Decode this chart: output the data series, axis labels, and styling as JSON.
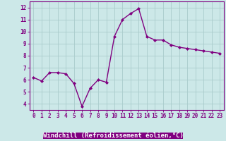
{
  "x": [
    0,
    1,
    2,
    3,
    4,
    5,
    6,
    7,
    8,
    9,
    10,
    11,
    12,
    13,
    14,
    15,
    16,
    17,
    18,
    19,
    20,
    21,
    22,
    23
  ],
  "y": [
    6.2,
    5.9,
    6.6,
    6.6,
    6.5,
    5.7,
    3.8,
    5.3,
    6.0,
    5.8,
    9.6,
    11.0,
    11.5,
    11.9,
    9.6,
    9.3,
    9.3,
    8.9,
    8.7,
    8.6,
    8.5,
    8.4,
    8.3,
    8.2
  ],
  "line_color": "#800080",
  "marker": "D",
  "marker_size": 2.0,
  "line_width": 1.0,
  "bg_color": "#cce8e8",
  "grid_color": "#aacccc",
  "xlabel": "Windchill (Refroidissement éolien,°C)",
  "xlabel_color": "#ffffff",
  "xlabel_bg": "#800080",
  "yticks": [
    4,
    5,
    6,
    7,
    8,
    9,
    10,
    11,
    12
  ],
  "xlim": [
    -0.5,
    23.5
  ],
  "ylim": [
    3.5,
    12.5
  ],
  "tick_fontsize": 5.5,
  "xlabel_fontsize": 6.5
}
